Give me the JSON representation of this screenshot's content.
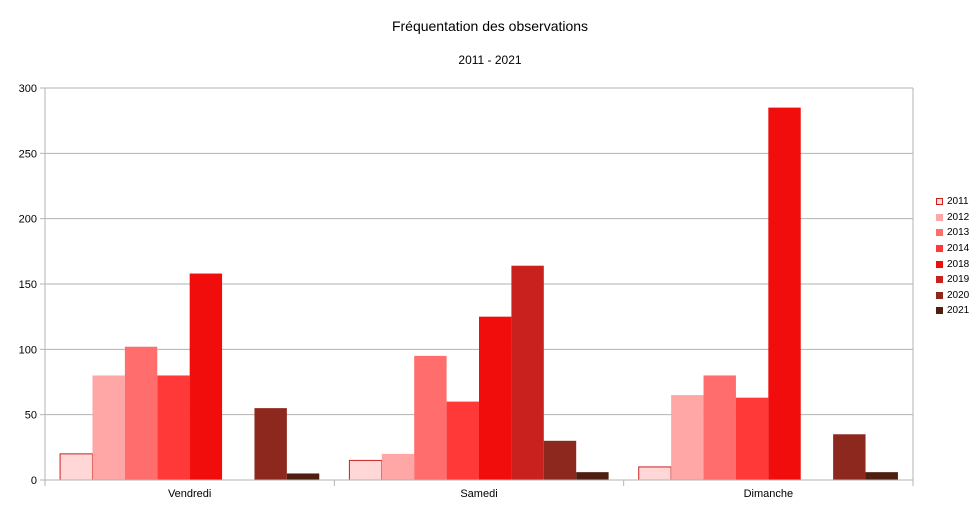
{
  "chart_data": {
    "type": "bar",
    "title": "Fréquentation des observations",
    "subtitle": "2011 - 2021",
    "xlabel": "",
    "ylabel": "",
    "categories": [
      "Vendredi",
      "Samedi",
      "Dimanche"
    ],
    "ylim": [
      0,
      300
    ],
    "yticks": [
      0,
      50,
      100,
      150,
      200,
      250,
      300
    ],
    "grid": true,
    "legend_position": "right",
    "series": [
      {
        "name": "2011",
        "color": "#ffd7d7",
        "border": "#c9211e",
        "values": [
          20,
          15,
          10
        ]
      },
      {
        "name": "2012",
        "color": "#ffa6a6",
        "values": [
          80,
          20,
          65
        ]
      },
      {
        "name": "2013",
        "color": "#ff6d6d",
        "values": [
          102,
          95,
          80
        ]
      },
      {
        "name": "2014",
        "color": "#ff3838",
        "values": [
          80,
          60,
          63
        ]
      },
      {
        "name": "2018",
        "color": "#f10d0c",
        "values": [
          158,
          125,
          285
        ]
      },
      {
        "name": "2019",
        "color": "#c9211e",
        "values": [
          0,
          164,
          0
        ]
      },
      {
        "name": "2020",
        "color": "#8d281e",
        "values": [
          55,
          30,
          35
        ]
      },
      {
        "name": "2021",
        "color": "#4e1f10",
        "values": [
          5,
          6,
          6
        ]
      }
    ]
  }
}
